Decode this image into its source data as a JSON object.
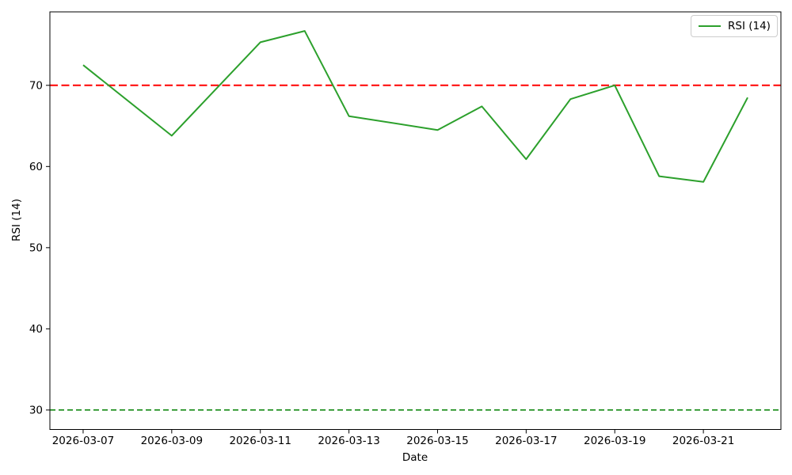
{
  "chart_data": {
    "type": "line",
    "title": "",
    "xlabel": "Date",
    "ylabel": "RSI (14)",
    "grid": false,
    "background_color": "#ffffff",
    "axis_color": "#000000",
    "legend": {
      "position": "upper-right",
      "entries": [
        {
          "label": "RSI (14)",
          "color": "#2ca02c"
        }
      ]
    },
    "series": [
      {
        "name": "RSI (14)",
        "color": "#2ca02c",
        "line_width": 2,
        "points": [
          {
            "date": "2026-03-07",
            "value": 72.5
          },
          {
            "date": "2026-03-09",
            "value": 63.8
          },
          {
            "date": "2026-03-11",
            "value": 75.3
          },
          {
            "date": "2026-03-12",
            "value": 76.7
          },
          {
            "date": "2026-03-13",
            "value": 66.2
          },
          {
            "date": "2026-03-15",
            "value": 64.5
          },
          {
            "date": "2026-03-16",
            "value": 67.4
          },
          {
            "date": "2026-03-17",
            "value": 60.9
          },
          {
            "date": "2026-03-18",
            "value": 68.3
          },
          {
            "date": "2026-03-19",
            "value": 70.0
          },
          {
            "date": "2026-03-20",
            "value": 58.8
          },
          {
            "date": "2026-03-21",
            "value": 58.1
          },
          {
            "date": "2026-03-22",
            "value": 68.5
          }
        ]
      }
    ],
    "reference_lines": [
      {
        "name": "overbought-line",
        "value": 70,
        "color": "#ff0000",
        "style": "dashed",
        "width": 2
      },
      {
        "name": "oversold-line",
        "value": 30,
        "color": "#008000",
        "style": "dashed",
        "width": 1.5
      }
    ],
    "x_ticks": [
      "2026-03-07",
      "2026-03-09",
      "2026-03-11",
      "2026-03-13",
      "2026-03-15",
      "2026-03-17",
      "2026-03-19",
      "2026-03-21"
    ],
    "y_ticks": [
      30,
      40,
      50,
      60,
      70
    ],
    "x_start_date": "2026-03-07",
    "xlim_days": [
      -0.75,
      15.75
    ],
    "ylim": [
      27.6,
      79.05
    ]
  }
}
